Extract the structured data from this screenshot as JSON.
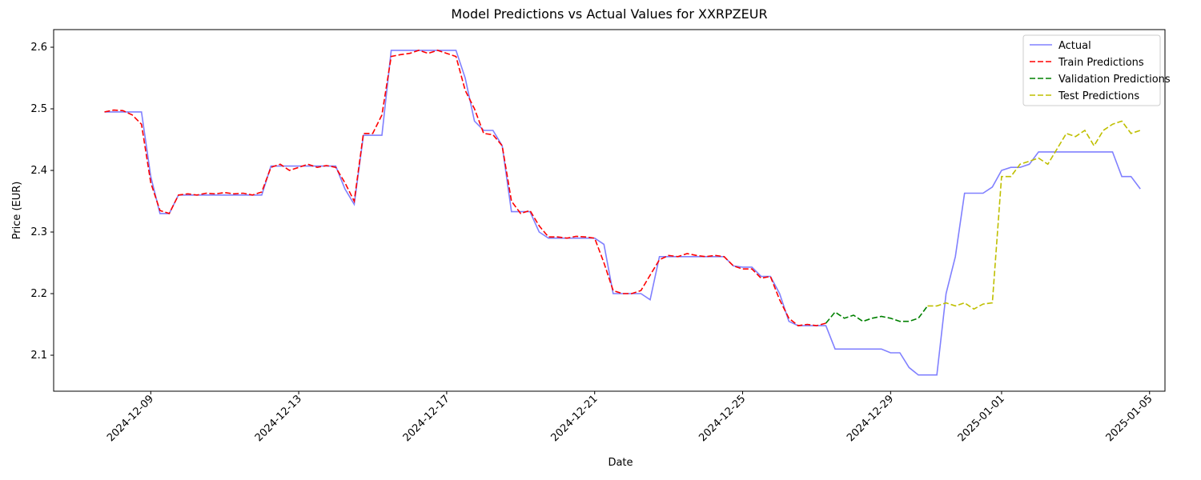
{
  "chart_data": {
    "type": "line",
    "title": "Model Predictions vs Actual Values for XXRPZEUR",
    "x_label": "Date",
    "y_label": "Price (EUR)",
    "legend": "upper right",
    "x": [
      "2024-12-07 18:00",
      "2024-12-08 00:00",
      "2024-12-08 06:00",
      "2024-12-08 12:00",
      "2024-12-08 18:00",
      "2024-12-09 00:00",
      "2024-12-09 06:00",
      "2024-12-09 12:00",
      "2024-12-09 18:00",
      "2024-12-10 00:00",
      "2024-12-10 06:00",
      "2024-12-10 12:00",
      "2024-12-10 18:00",
      "2024-12-11 00:00",
      "2024-12-11 06:00",
      "2024-12-11 12:00",
      "2024-12-11 18:00",
      "2024-12-12 00:00",
      "2024-12-12 06:00",
      "2024-12-12 12:00",
      "2024-12-12 18:00",
      "2024-12-13 00:00",
      "2024-12-13 06:00",
      "2024-12-13 12:00",
      "2024-12-13 18:00",
      "2024-12-14 00:00",
      "2024-12-14 06:00",
      "2024-12-14 12:00",
      "2024-12-14 18:00",
      "2024-12-15 00:00",
      "2024-12-15 06:00",
      "2024-12-15 12:00",
      "2024-12-15 18:00",
      "2024-12-16 00:00",
      "2024-12-16 06:00",
      "2024-12-16 12:00",
      "2024-12-16 18:00",
      "2024-12-17 00:00",
      "2024-12-17 06:00",
      "2024-12-17 12:00",
      "2024-12-17 18:00",
      "2024-12-18 00:00",
      "2024-12-18 06:00",
      "2024-12-18 12:00",
      "2024-12-18 18:00",
      "2024-12-19 00:00",
      "2024-12-19 06:00",
      "2024-12-19 12:00",
      "2024-12-19 18:00",
      "2024-12-20 00:00",
      "2024-12-20 06:00",
      "2024-12-20 12:00",
      "2024-12-20 18:00",
      "2024-12-21 00:00",
      "2024-12-21 06:00",
      "2024-12-21 12:00",
      "2024-12-21 18:00",
      "2024-12-22 00:00",
      "2024-12-22 06:00",
      "2024-12-22 12:00",
      "2024-12-22 18:00",
      "2024-12-23 00:00",
      "2024-12-23 06:00",
      "2024-12-23 12:00",
      "2024-12-23 18:00",
      "2024-12-24 00:00",
      "2024-12-24 06:00",
      "2024-12-24 12:00",
      "2024-12-24 18:00",
      "2024-12-25 00:00",
      "2024-12-25 06:00",
      "2024-12-25 12:00",
      "2024-12-25 18:00",
      "2024-12-26 00:00",
      "2024-12-26 06:00",
      "2024-12-26 12:00",
      "2024-12-26 18:00",
      "2024-12-27 00:00",
      "2024-12-27 06:00",
      "2024-12-27 12:00",
      "2024-12-27 18:00",
      "2024-12-28 00:00",
      "2024-12-28 06:00",
      "2024-12-28 12:00",
      "2024-12-28 18:00",
      "2024-12-29 00:00",
      "2024-12-29 06:00",
      "2024-12-29 12:00",
      "2024-12-29 18:00",
      "2024-12-30 00:00",
      "2024-12-30 06:00",
      "2024-12-30 12:00",
      "2024-12-30 18:00",
      "2024-12-31 00:00",
      "2024-12-31 06:00",
      "2024-12-31 12:00",
      "2024-12-31 18:00",
      "2025-01-01 00:00",
      "2025-01-01 06:00",
      "2025-01-01 12:00",
      "2025-01-01 18:00",
      "2025-01-02 00:00",
      "2025-01-02 06:00",
      "2025-01-02 12:00",
      "2025-01-02 18:00",
      "2025-01-03 00:00",
      "2025-01-03 06:00",
      "2025-01-03 12:00",
      "2025-01-03 18:00",
      "2025-01-04 00:00",
      "2025-01-04 06:00",
      "2025-01-04 12:00",
      "2025-01-04 18:00"
    ],
    "series": [
      {
        "name": "Actual",
        "color": "#8080ff",
        "linestyle": "solid",
        "values": [
          2.495,
          2.495,
          2.495,
          2.495,
          2.495,
          2.39,
          2.33,
          2.33,
          2.36,
          2.36,
          2.36,
          2.36,
          2.36,
          2.36,
          2.36,
          2.36,
          2.36,
          2.36,
          2.407,
          2.407,
          2.407,
          2.407,
          2.407,
          2.407,
          2.407,
          2.407,
          2.37,
          2.345,
          2.457,
          2.457,
          2.457,
          2.595,
          2.595,
          2.595,
          2.595,
          2.595,
          2.595,
          2.595,
          2.595,
          2.55,
          2.48,
          2.465,
          2.465,
          2.44,
          2.333,
          2.333,
          2.333,
          2.3,
          2.29,
          2.29,
          2.29,
          2.29,
          2.29,
          2.29,
          2.28,
          2.2,
          2.2,
          2.2,
          2.2,
          2.19,
          2.26,
          2.26,
          2.26,
          2.26,
          2.26,
          2.26,
          2.26,
          2.26,
          2.245,
          2.243,
          2.243,
          2.228,
          2.228,
          2.2,
          2.155,
          2.148,
          2.148,
          2.148,
          2.148,
          2.11,
          2.11,
          2.11,
          2.11,
          2.11,
          2.11,
          2.104,
          2.104,
          2.08,
          2.068,
          2.068,
          2.068,
          2.2,
          2.26,
          2.363,
          2.363,
          2.363,
          2.373,
          2.4,
          2.405,
          2.405,
          2.41,
          2.43,
          2.43,
          2.43,
          2.43,
          2.43,
          2.43,
          2.43,
          2.43,
          2.43,
          2.39,
          2.39,
          2.37
        ]
      },
      {
        "name": "Train Predictions",
        "color": "#ff0000",
        "linestyle": "dashed",
        "values": [
          2.495,
          2.498,
          2.497,
          2.49,
          2.475,
          2.38,
          2.335,
          2.33,
          2.36,
          2.362,
          2.36,
          2.363,
          2.362,
          2.364,
          2.362,
          2.363,
          2.36,
          2.365,
          2.405,
          2.41,
          2.4,
          2.405,
          2.41,
          2.405,
          2.408,
          2.405,
          2.38,
          2.35,
          2.46,
          2.46,
          2.49,
          2.585,
          2.588,
          2.59,
          2.595,
          2.59,
          2.595,
          2.59,
          2.585,
          2.53,
          2.5,
          2.46,
          2.458,
          2.44,
          2.35,
          2.33,
          2.335,
          2.31,
          2.292,
          2.292,
          2.29,
          2.293,
          2.292,
          2.29,
          2.25,
          2.205,
          2.2,
          2.2,
          2.205,
          2.23,
          2.255,
          2.262,
          2.26,
          2.265,
          2.262,
          2.26,
          2.262,
          2.26,
          2.245,
          2.24,
          2.24,
          2.225,
          2.228,
          2.19,
          2.16,
          2.148,
          2.15,
          2.148,
          2.152,
          null,
          null,
          null,
          null,
          null,
          null,
          null,
          null,
          null,
          null,
          null,
          null,
          null,
          null,
          null,
          null,
          null,
          null,
          null,
          null,
          null,
          null,
          null,
          null,
          null,
          null,
          null,
          null,
          null,
          null,
          null,
          null,
          null,
          null
        ]
      },
      {
        "name": "Validation Predictions",
        "color": "#008000",
        "linestyle": "dashed",
        "values": [
          null,
          null,
          null,
          null,
          null,
          null,
          null,
          null,
          null,
          null,
          null,
          null,
          null,
          null,
          null,
          null,
          null,
          null,
          null,
          null,
          null,
          null,
          null,
          null,
          null,
          null,
          null,
          null,
          null,
          null,
          null,
          null,
          null,
          null,
          null,
          null,
          null,
          null,
          null,
          null,
          null,
          null,
          null,
          null,
          null,
          null,
          null,
          null,
          null,
          null,
          null,
          null,
          null,
          null,
          null,
          null,
          null,
          null,
          null,
          null,
          null,
          null,
          null,
          null,
          null,
          null,
          null,
          null,
          null,
          null,
          null,
          null,
          null,
          null,
          null,
          null,
          null,
          null,
          2.152,
          2.17,
          2.16,
          2.165,
          2.155,
          2.16,
          2.163,
          2.16,
          2.155,
          2.155,
          2.16,
          2.18,
          null,
          null,
          null,
          null,
          null,
          null,
          null,
          null,
          null,
          null,
          null,
          null,
          null,
          null,
          null,
          null,
          null,
          null,
          null,
          null,
          null,
          null,
          null
        ]
      },
      {
        "name": "Test Predictions",
        "color": "#bfbf00",
        "linestyle": "dashed",
        "values": [
          null,
          null,
          null,
          null,
          null,
          null,
          null,
          null,
          null,
          null,
          null,
          null,
          null,
          null,
          null,
          null,
          null,
          null,
          null,
          null,
          null,
          null,
          null,
          null,
          null,
          null,
          null,
          null,
          null,
          null,
          null,
          null,
          null,
          null,
          null,
          null,
          null,
          null,
          null,
          null,
          null,
          null,
          null,
          null,
          null,
          null,
          null,
          null,
          null,
          null,
          null,
          null,
          null,
          null,
          null,
          null,
          null,
          null,
          null,
          null,
          null,
          null,
          null,
          null,
          null,
          null,
          null,
          null,
          null,
          null,
          null,
          null,
          null,
          null,
          null,
          null,
          null,
          null,
          null,
          null,
          null,
          null,
          null,
          null,
          null,
          null,
          null,
          null,
          null,
          2.18,
          2.18,
          2.185,
          2.18,
          2.185,
          2.175,
          2.183,
          2.185,
          2.39,
          2.39,
          2.41,
          2.415,
          2.42,
          2.41,
          2.435,
          2.46,
          2.455,
          2.465,
          2.44,
          2.465,
          2.475,
          2.48,
          2.46,
          2.465
        ]
      }
    ],
    "xlim": [
      "2024-12-06 09:00",
      "2025-01-05 10:00"
    ],
    "xticks": [
      "2024-12-09",
      "2024-12-13",
      "2024-12-17",
      "2024-12-21",
      "2024-12-25",
      "2024-12-29",
      "2025-01-01",
      "2025-01-05"
    ],
    "ylim": [
      2.0416,
      2.6286
    ],
    "yticks": [
      2.1,
      2.2,
      2.3,
      2.4,
      2.5,
      2.6
    ],
    "grid": false
  }
}
